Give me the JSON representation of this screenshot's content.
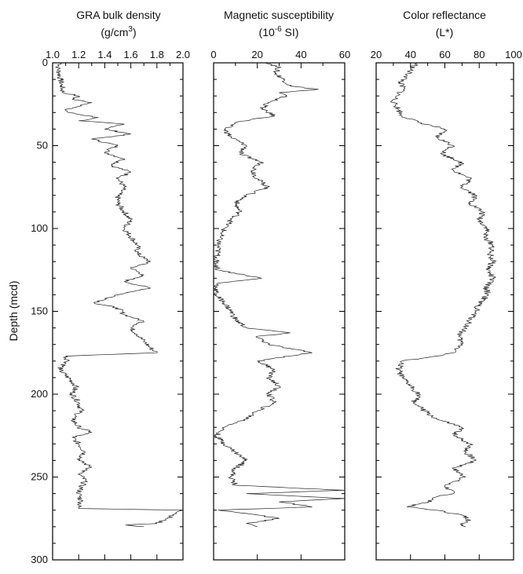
{
  "chart_data": [
    {
      "type": "line",
      "title": "GRA bulk density",
      "unit_main": "(g/cm",
      "unit_sup": "3",
      "unit_tail": ")",
      "ylabel": "Depth (mcd)",
      "xlim": [
        1.0,
        2.0
      ],
      "ylim": [
        300,
        0
      ],
      "xticks": [
        "1.0",
        "1.2",
        "1.4",
        "1.6",
        "1.8",
        "2.0"
      ],
      "yticks": [
        "0",
        "50",
        "100",
        "150",
        "200",
        "250",
        "300"
      ],
      "series": [
        {
          "depth": [
            0,
            3,
            6,
            10,
            14,
            18,
            20,
            22,
            24,
            26,
            28,
            30,
            33,
            35,
            37,
            40,
            43,
            46,
            50,
            54,
            58,
            62,
            66,
            70,
            75,
            80,
            85,
            90,
            95,
            100,
            105,
            110,
            115,
            118,
            120,
            124,
            128,
            132,
            136,
            140,
            143,
            145,
            148,
            152,
            156,
            160,
            164,
            168,
            172,
            175,
            177,
            180,
            185,
            190,
            195,
            200,
            205,
            210,
            215,
            220,
            223,
            226,
            230,
            235,
            240,
            244,
            248,
            252,
            256,
            260,
            265,
            268,
            269,
            270,
            272,
            275,
            278,
            279,
            280
          ],
          "value": [
            1.07,
            1.04,
            1.05,
            1.06,
            1.07,
            1.08,
            1.2,
            1.15,
            1.3,
            1.22,
            1.1,
            1.12,
            1.35,
            1.2,
            1.55,
            1.4,
            1.6,
            1.3,
            1.5,
            1.4,
            1.55,
            1.45,
            1.6,
            1.5,
            1.55,
            1.5,
            1.5,
            1.55,
            1.6,
            1.55,
            1.6,
            1.65,
            1.65,
            1.7,
            1.75,
            1.6,
            1.7,
            1.55,
            1.75,
            1.5,
            1.4,
            1.32,
            1.5,
            1.55,
            1.7,
            1.6,
            1.65,
            1.7,
            1.75,
            1.8,
            1.1,
            1.12,
            1.05,
            1.12,
            1.18,
            1.15,
            1.2,
            1.22,
            1.15,
            1.2,
            1.3,
            1.15,
            1.2,
            1.25,
            1.2,
            1.3,
            1.2,
            1.25,
            1.22,
            1.2,
            1.22,
            1.2,
            1.2,
            2.0,
            1.95,
            1.88,
            1.8,
            1.56,
            1.7
          ]
        }
      ]
    },
    {
      "type": "line",
      "title": "Magnetic susceptibility",
      "unit_main": "(10",
      "unit_sup": "-6",
      "unit_tail": " SI)",
      "xlim": [
        0,
        60
      ],
      "ylim": [
        300,
        0
      ],
      "xticks": [
        "0",
        "20",
        "40",
        "60"
      ],
      "yticks": [
        "0",
        "50",
        "100",
        "150",
        "200",
        "250",
        "300"
      ],
      "series": [
        {
          "depth": [
            0,
            3,
            6,
            10,
            14,
            16,
            18,
            20,
            24,
            28,
            32,
            36,
            40,
            45,
            50,
            55,
            60,
            65,
            70,
            75,
            80,
            85,
            90,
            95,
            100,
            105,
            110,
            115,
            120,
            125,
            130,
            133,
            136,
            140,
            145,
            150,
            155,
            160,
            163,
            165,
            170,
            175,
            180,
            185,
            190,
            195,
            200,
            205,
            210,
            215,
            220,
            225,
            230,
            235,
            240,
            245,
            250,
            255,
            258,
            260,
            263,
            265,
            268,
            270,
            272,
            275,
            278,
            280
          ],
          "value": [
            25,
            30,
            28,
            32,
            35,
            48,
            30,
            33,
            25,
            22,
            28,
            10,
            5,
            8,
            15,
            12,
            22,
            18,
            20,
            25,
            15,
            10,
            12,
            8,
            5,
            3,
            2,
            2,
            1,
            2,
            22,
            2,
            1,
            1,
            5,
            8,
            10,
            15,
            35,
            20,
            25,
            45,
            20,
            28,
            25,
            30,
            25,
            28,
            20,
            15,
            5,
            1,
            5,
            10,
            15,
            10,
            8,
            10,
            60,
            15,
            60,
            30,
            45,
            2,
            15,
            30,
            15,
            20
          ]
        }
      ]
    },
    {
      "type": "line",
      "title": "Color reflectance",
      "unit_main": "(L*)",
      "unit_sup": "",
      "unit_tail": "",
      "xlim": [
        20,
        100
      ],
      "ylim": [
        300,
        0
      ],
      "xticks": [
        "20",
        "40",
        "60",
        "80",
        "100"
      ],
      "yticks": [
        "0",
        "50",
        "100",
        "150",
        "200",
        "250",
        "300"
      ],
      "series": [
        {
          "depth": [
            0,
            4,
            8,
            12,
            16,
            20,
            24,
            28,
            32,
            36,
            40,
            45,
            50,
            55,
            60,
            65,
            70,
            75,
            80,
            85,
            90,
            95,
            100,
            105,
            110,
            115,
            120,
            125,
            130,
            135,
            140,
            145,
            150,
            155,
            160,
            165,
            170,
            175,
            177,
            180,
            185,
            190,
            195,
            200,
            205,
            210,
            215,
            220,
            225,
            230,
            235,
            240,
            245,
            250,
            255,
            260,
            262,
            265,
            268,
            270,
            273,
            276,
            278,
            280
          ],
          "value": [
            44,
            40,
            38,
            34,
            36,
            32,
            30,
            33,
            35,
            45,
            60,
            55,
            65,
            58,
            70,
            65,
            75,
            70,
            78,
            75,
            82,
            80,
            85,
            83,
            88,
            86,
            88,
            85,
            88,
            84,
            85,
            80,
            78,
            75,
            72,
            68,
            70,
            65,
            55,
            35,
            33,
            35,
            40,
            45,
            42,
            48,
            55,
            70,
            65,
            75,
            72,
            78,
            65,
            72,
            60,
            65,
            55,
            50,
            38,
            55,
            70,
            75,
            70,
            72
          ]
        }
      ]
    }
  ]
}
